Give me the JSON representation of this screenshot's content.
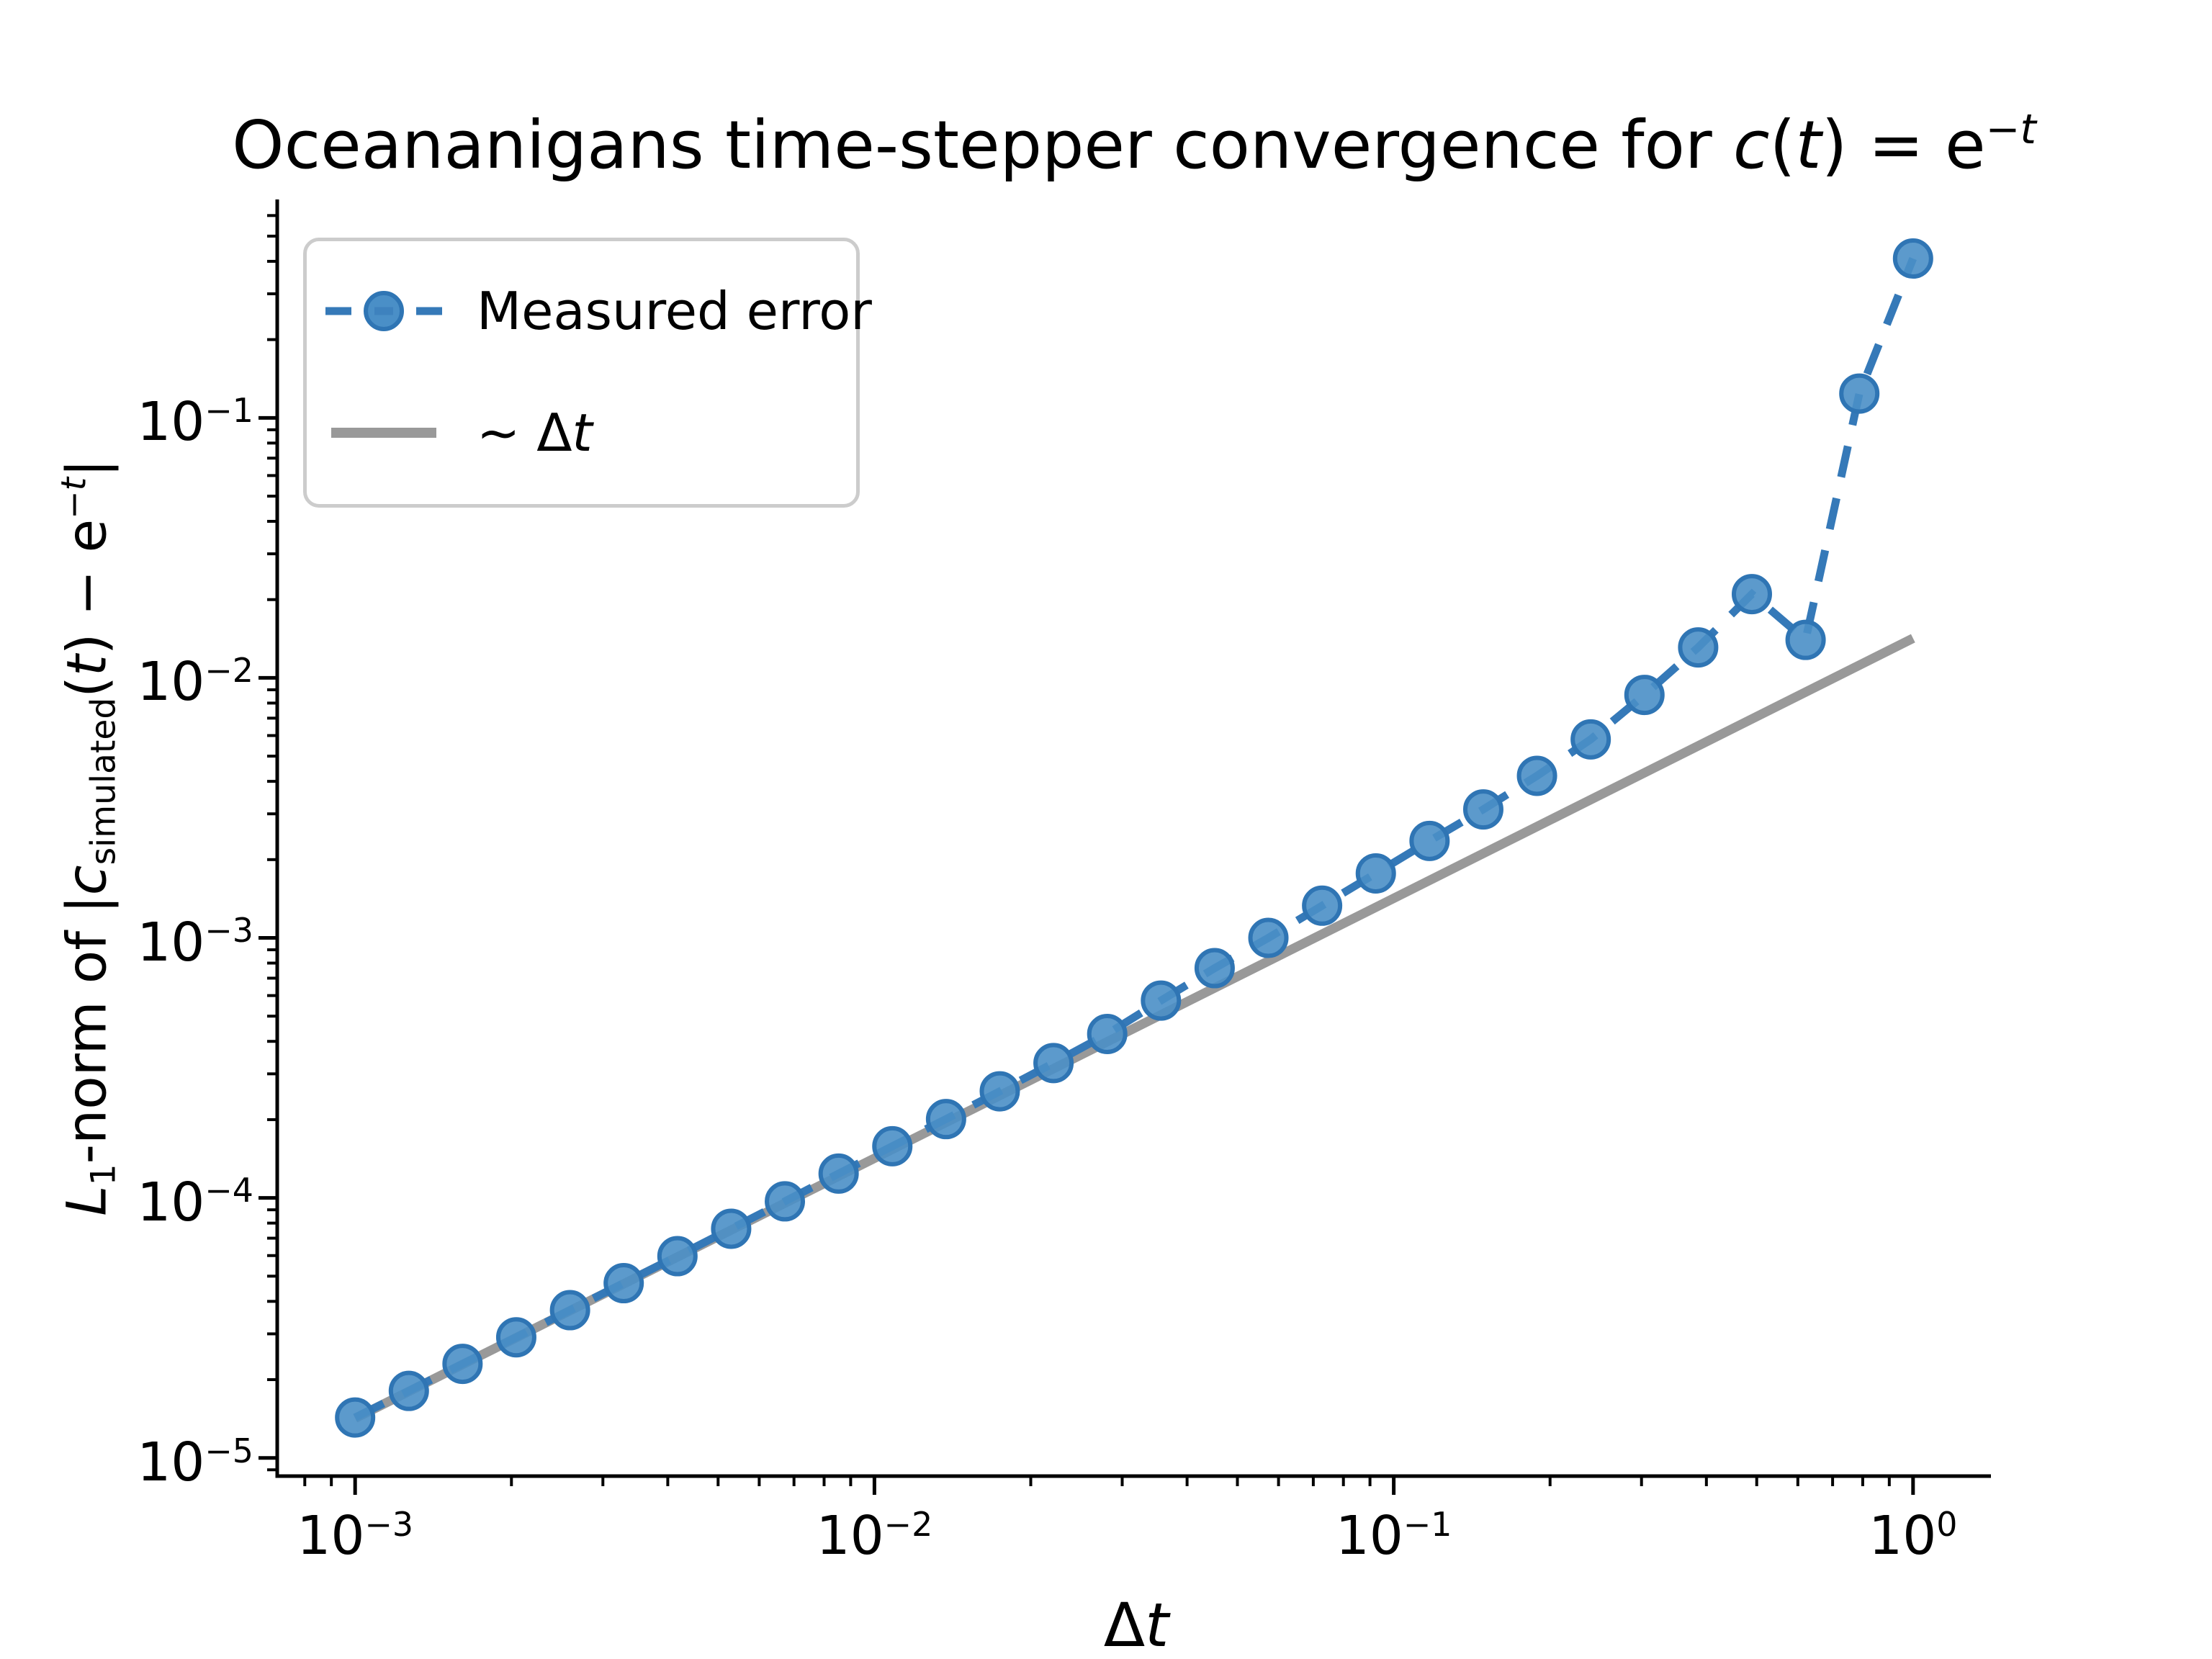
{
  "figure": {
    "background": "#ffffff"
  },
  "colors": {
    "measured_line": "#3579b8",
    "marker_face": "#4a8fc7",
    "marker_edge": "#2f75b4",
    "reference_line": "#999999",
    "axis": "#000000",
    "legend_border": "#cccccc",
    "text": "#000000"
  },
  "text": {
    "title_runs": [
      {
        "t": "Oceananigans time-stepper convergence for "
      },
      {
        "t": "c",
        "i": true
      },
      {
        "t": "("
      },
      {
        "t": "t",
        "i": true
      },
      {
        "t": ") = e"
      },
      {
        "t": "−",
        "sup": true
      },
      {
        "t": "t",
        "sup": true,
        "i": true
      }
    ],
    "xlabel_runs": [
      {
        "t": "Δ"
      },
      {
        "t": "t",
        "i": true
      }
    ],
    "ylabel_runs": [
      {
        "t": "L",
        "i": true
      },
      {
        "t": "1",
        "sub": true
      },
      {
        "t": "-norm of |"
      },
      {
        "t": "c",
        "i": true
      },
      {
        "t": "simulated",
        "sub": true
      },
      {
        "t": "("
      },
      {
        "t": "t",
        "i": true
      },
      {
        "t": ") − e"
      },
      {
        "t": "−",
        "sup": true
      },
      {
        "t": "t",
        "sup": true,
        "i": true
      },
      {
        "t": "|"
      }
    ]
  },
  "chart_data": {
    "type": "line",
    "title": "Oceananigans time-stepper convergence for c(t) = e^{-t}",
    "xlabel": "Δt",
    "ylabel": "L1-norm of |c_simulated(t) - e^{-t}|",
    "x_scale": "log",
    "y_scale": "log",
    "xlim_log10": [
      -3.15,
      0.15
    ],
    "ylim_log10": [
      -5.07,
      -0.16
    ],
    "grid": false,
    "legend_position": "upper left",
    "x_major_ticks": [
      {
        "log10": -3,
        "base": "10",
        "exp": "−3"
      },
      {
        "log10": -2,
        "base": "10",
        "exp": "−2"
      },
      {
        "log10": -1,
        "base": "10",
        "exp": "−1"
      },
      {
        "log10": 0,
        "base": "10",
        "exp": "0"
      }
    ],
    "y_major_ticks": [
      {
        "log10": -1,
        "base": "10",
        "exp": "−1"
      },
      {
        "log10": -2,
        "base": "10",
        "exp": "−2"
      },
      {
        "log10": -3,
        "base": "10",
        "exp": "−3"
      },
      {
        "log10": -4,
        "base": "10",
        "exp": "−4"
      },
      {
        "log10": -5,
        "base": "10",
        "exp": "−5"
      }
    ],
    "minor_ticks": "log mantissas 2-9 on both axes",
    "series": [
      {
        "name": "Measured error",
        "style": "dashed line with circle markers",
        "x": [
          0.001,
          0.001269,
          0.00161,
          0.002043,
          0.002593,
          0.00329,
          0.004175,
          0.005298,
          0.006723,
          0.008532,
          0.010826,
          0.013738,
          0.017433,
          0.022122,
          0.028072,
          0.035622,
          0.045204,
          0.057362,
          0.072789,
          0.092367,
          0.11721,
          0.148735,
          0.188739,
          0.239503,
          0.303919,
          0.385662,
          0.48939,
          0.621017,
          0.788046,
          1.0
        ],
        "y": [
          1.43e-05,
          1.81e-05,
          2.3e-05,
          2.91e-05,
          3.7e-05,
          4.7e-05,
          5.97e-05,
          7.61e-05,
          9.7e-05,
          0.000124,
          0.000158,
          0.000201,
          0.000257,
          0.00033,
          0.000427,
          0.000574,
          0.000765,
          0.001,
          0.00133,
          0.00177,
          0.00236,
          0.00312,
          0.0042,
          0.0058,
          0.0086,
          0.0131,
          0.021,
          0.014,
          0.124,
          0.41
        ]
      },
      {
        "name": "~ Δt",
        "style": "thick solid line",
        "x": [
          0.001,
          1.0
        ],
        "y": [
          1.42e-05,
          0.0142
        ]
      }
    ],
    "legend": {
      "entries": [
        {
          "label": "Measured error",
          "runs": [
            {
              "t": "Measured error"
            }
          ],
          "sample": "dashed-line-with-marker"
        },
        {
          "label": "~ Δt",
          "runs": [
            {
              "t": "~ Δ"
            },
            {
              "t": "t",
              "i": true
            }
          ],
          "sample": "thick-gray-line"
        }
      ]
    }
  }
}
